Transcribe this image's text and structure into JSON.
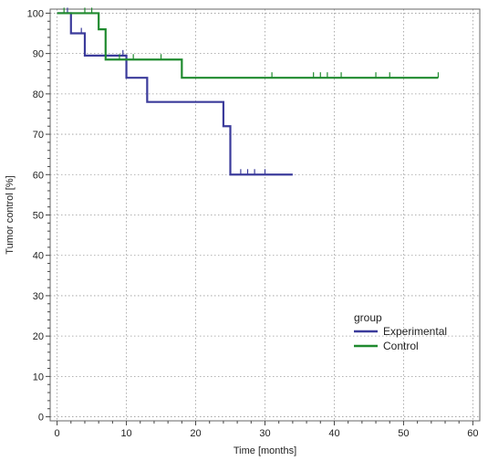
{
  "chart_data": {
    "type": "line",
    "subtype": "kaplan-meier-step",
    "xlabel": "Time [months]",
    "ylabel": "Tumor control [%]",
    "xlim": [
      -1,
      61
    ],
    "ylim": [
      -1,
      101
    ],
    "x_ticks": [
      0,
      10,
      20,
      30,
      40,
      50,
      60
    ],
    "y_ticks": [
      0,
      10,
      20,
      30,
      40,
      50,
      60,
      70,
      80,
      90,
      100
    ],
    "grid": true,
    "legend": {
      "title": "group",
      "placement": "bottom-right"
    },
    "series": [
      {
        "name": "Experimental",
        "color": "#3b3b9b",
        "steps": [
          [
            0,
            100
          ],
          [
            2,
            95
          ],
          [
            4,
            89.5
          ],
          [
            10,
            84
          ],
          [
            13,
            78
          ],
          [
            24,
            72
          ],
          [
            25,
            60
          ],
          [
            34,
            60
          ]
        ],
        "censored": [
          1.5,
          3.5,
          9.5,
          25,
          26.5,
          27.5,
          28.5,
          30
        ]
      },
      {
        "name": "Control",
        "color": "#1f8a2e",
        "steps": [
          [
            0,
            100
          ],
          [
            6,
            96
          ],
          [
            7,
            88.5
          ],
          [
            18,
            84
          ],
          [
            55,
            84
          ]
        ],
        "censored": [
          1,
          4,
          5,
          9,
          11,
          15,
          31,
          37,
          38,
          39,
          41,
          46,
          48,
          55
        ]
      }
    ]
  }
}
